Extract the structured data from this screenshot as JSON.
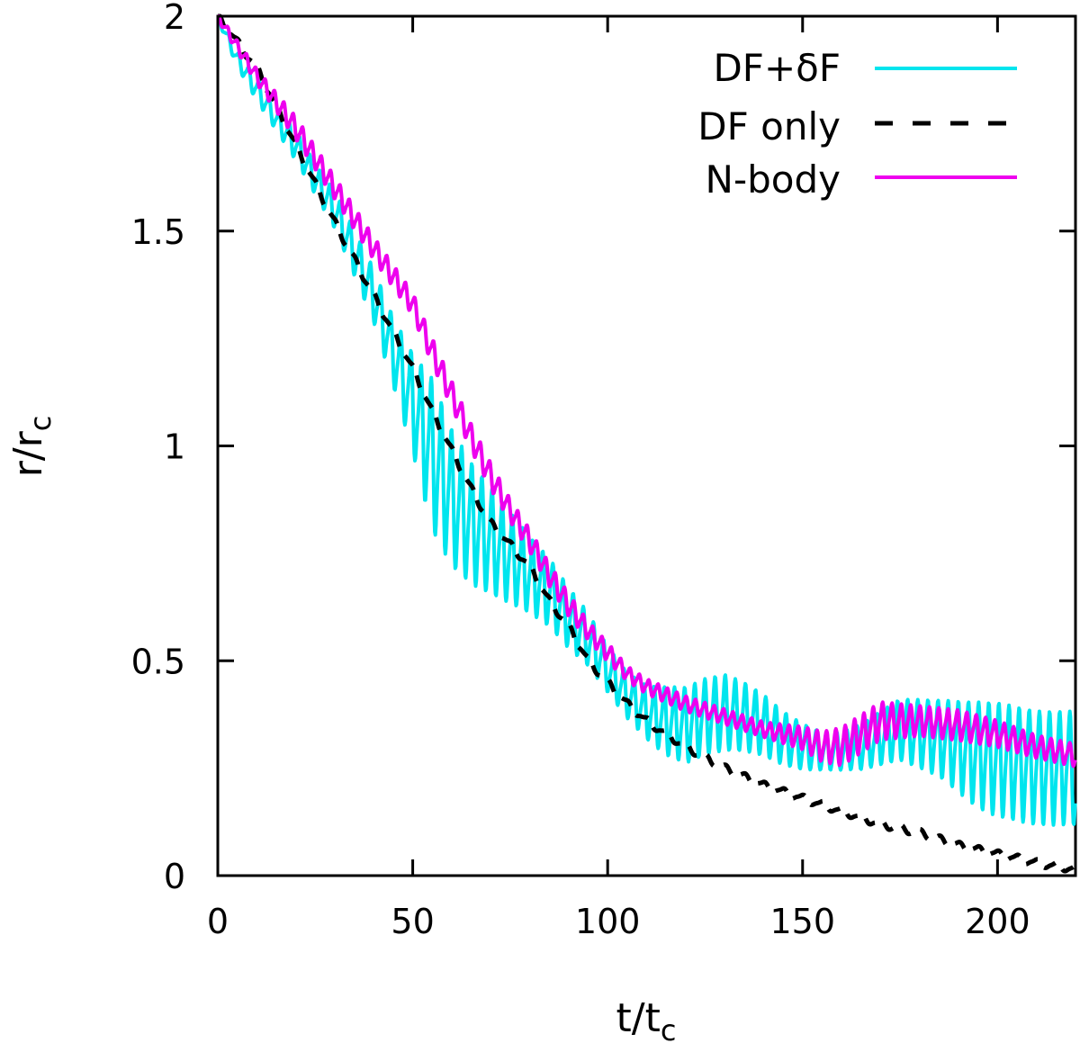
{
  "chart_data": {
    "type": "line",
    "title": "",
    "xlabel": {
      "base": "t/t",
      "sub": "c"
    },
    "ylabel": {
      "base": "r/r",
      "sub": "c"
    },
    "xlim": [
      0,
      220
    ],
    "ylim": [
      0,
      2
    ],
    "xticks": [
      0,
      50,
      100,
      150,
      200
    ],
    "yticks": [
      0,
      0.5,
      1,
      1.5,
      2
    ],
    "xtick_labels": [
      "0",
      "50",
      "100",
      "150",
      "200"
    ],
    "ytick_labels": [
      "0",
      "0.5",
      "1",
      "1.5",
      "2"
    ],
    "grid": false,
    "legend_position": "top-right",
    "series": [
      {
        "name": "DF+δF",
        "color": "#00e5ee",
        "style": "solid",
        "x": [
          0,
          5,
          10,
          15,
          20,
          25,
          30,
          35,
          40,
          45,
          50,
          55,
          60,
          65,
          70,
          75,
          80,
          85,
          90,
          95,
          100,
          105,
          110,
          115,
          120,
          125,
          130,
          135,
          140,
          145,
          150,
          155,
          160,
          165,
          170,
          175,
          180,
          185,
          190,
          195,
          200,
          205,
          210,
          215,
          220
        ],
        "y": [
          2.0,
          1.9,
          1.83,
          1.76,
          1.7,
          1.62,
          1.55,
          1.45,
          1.35,
          1.22,
          1.1,
          0.98,
          0.88,
          0.82,
          0.78,
          0.74,
          0.7,
          0.66,
          0.6,
          0.55,
          0.48,
          0.42,
          0.38,
          0.36,
          0.35,
          0.37,
          0.38,
          0.37,
          0.35,
          0.32,
          0.3,
          0.29,
          0.29,
          0.3,
          0.32,
          0.34,
          0.33,
          0.32,
          0.3,
          0.28,
          0.27,
          0.26,
          0.25,
          0.25,
          0.25
        ],
        "osc_amp": [
          0.01,
          0.02,
          0.03,
          0.03,
          0.04,
          0.04,
          0.05,
          0.06,
          0.07,
          0.09,
          0.13,
          0.2,
          0.18,
          0.16,
          0.14,
          0.12,
          0.1,
          0.09,
          0.08,
          0.07,
          0.06,
          0.06,
          0.07,
          0.09,
          0.1,
          0.1,
          0.1,
          0.09,
          0.08,
          0.07,
          0.06,
          0.05,
          0.05,
          0.06,
          0.07,
          0.08,
          0.09,
          0.1,
          0.12,
          0.14,
          0.15,
          0.15,
          0.15,
          0.15,
          0.15
        ],
        "osc_period": 2.6
      },
      {
        "name": "DF only",
        "color": "#000000",
        "style": "dashed",
        "x": [
          0,
          10,
          20,
          30,
          40,
          50,
          55,
          60,
          65,
          70,
          75,
          80,
          85,
          90,
          95,
          100,
          105,
          110,
          115,
          120,
          130,
          140,
          150,
          160,
          170,
          180,
          190,
          200,
          210,
          220
        ],
        "y": [
          2.0,
          1.88,
          1.7,
          1.52,
          1.35,
          1.18,
          1.08,
          0.99,
          0.9,
          0.82,
          0.77,
          0.72,
          0.64,
          0.58,
          0.5,
          0.45,
          0.4,
          0.36,
          0.33,
          0.3,
          0.25,
          0.21,
          0.18,
          0.15,
          0.12,
          0.1,
          0.07,
          0.05,
          0.03,
          0.015
        ],
        "osc_amp": [
          0.01,
          0.01,
          0.01,
          0.01,
          0.01,
          0.01,
          0.01,
          0.01,
          0.01,
          0.01,
          0.01,
          0.01,
          0.01,
          0.01,
          0.01,
          0.01,
          0.01,
          0.01,
          0.01,
          0.01,
          0.01,
          0.01,
          0.01,
          0.01,
          0.01,
          0.01,
          0.01,
          0.01,
          0.01,
          0.01
        ],
        "osc_period": 5
      },
      {
        "name": "N-body",
        "color": "#ee00ee",
        "style": "solid",
        "x": [
          0,
          10,
          20,
          30,
          40,
          50,
          55,
          60,
          65,
          70,
          75,
          80,
          85,
          90,
          95,
          100,
          105,
          110,
          115,
          120,
          130,
          140,
          150,
          155,
          160,
          165,
          170,
          180,
          190,
          200,
          210,
          220
        ],
        "y": [
          2.0,
          1.86,
          1.74,
          1.6,
          1.46,
          1.33,
          1.22,
          1.12,
          1.02,
          0.93,
          0.85,
          0.78,
          0.7,
          0.63,
          0.57,
          0.52,
          0.47,
          0.44,
          0.42,
          0.4,
          0.37,
          0.34,
          0.32,
          0.3,
          0.3,
          0.33,
          0.36,
          0.36,
          0.35,
          0.33,
          0.3,
          0.28
        ],
        "osc_amp": [
          0.01,
          0.02,
          0.03,
          0.03,
          0.03,
          0.03,
          0.035,
          0.035,
          0.035,
          0.035,
          0.03,
          0.03,
          0.03,
          0.03,
          0.025,
          0.025,
          0.02,
          0.02,
          0.02,
          0.02,
          0.02,
          0.02,
          0.03,
          0.04,
          0.05,
          0.05,
          0.05,
          0.04,
          0.04,
          0.035,
          0.03,
          0.03
        ],
        "osc_period": 2.4
      }
    ]
  }
}
